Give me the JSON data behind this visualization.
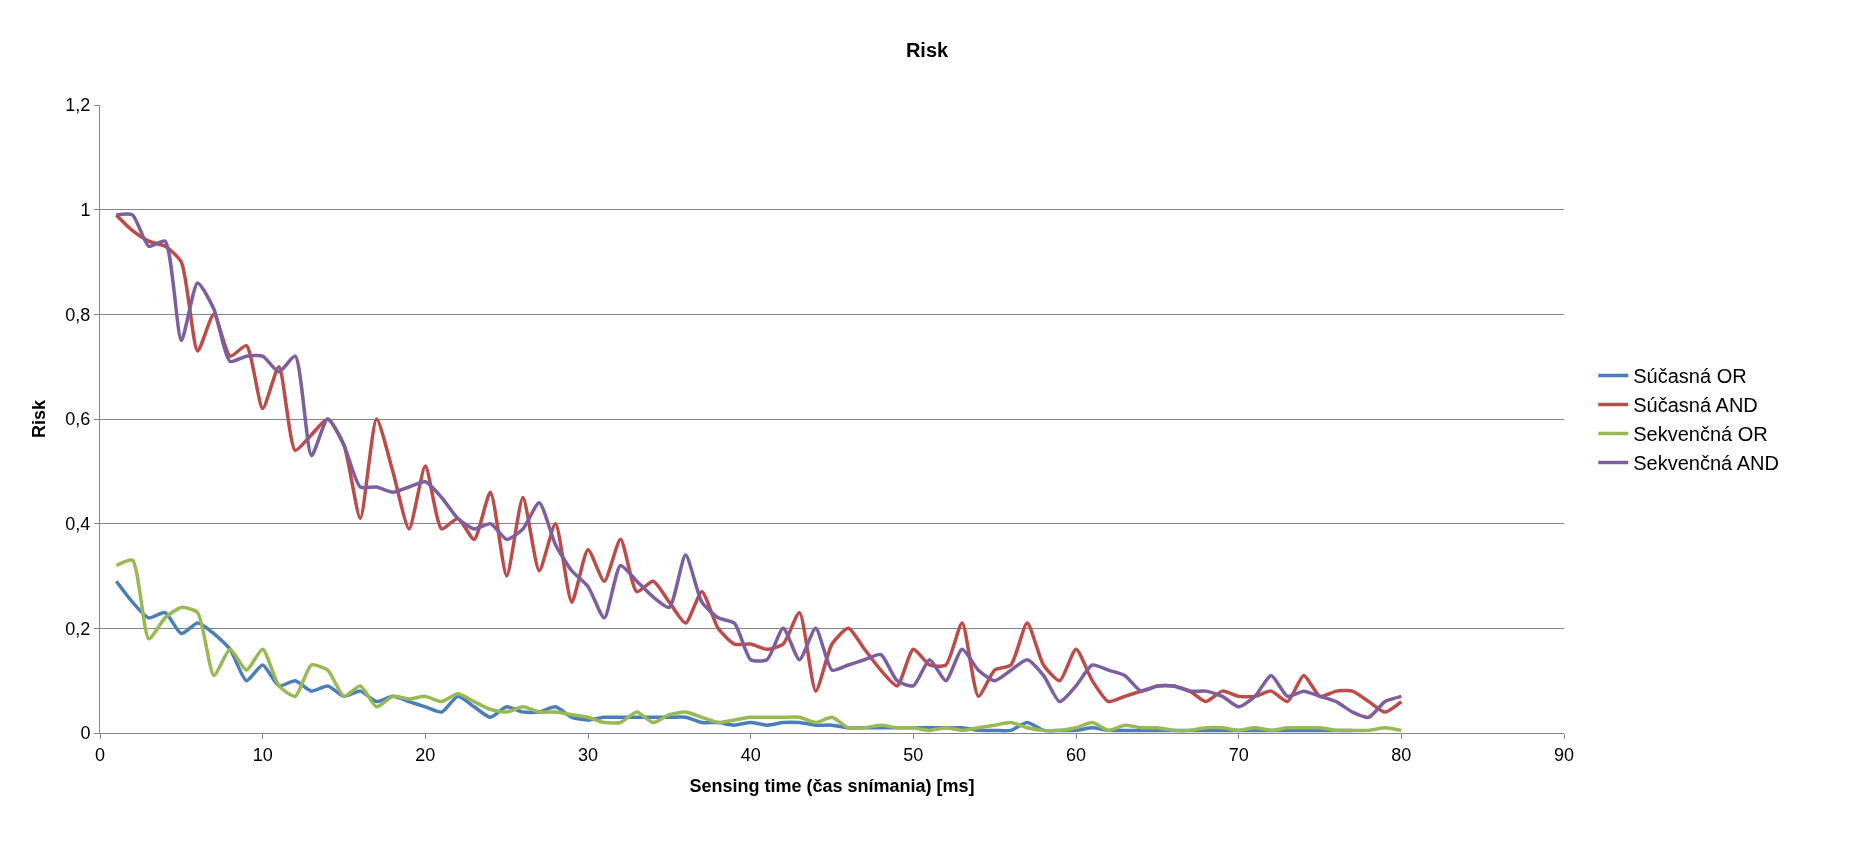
{
  "chart_data": {
    "type": "line",
    "title": "Risk",
    "xlabel": "Sensing time (čas snímania) [ms]",
    "ylabel": "Risk",
    "x": [
      1,
      2,
      3,
      4,
      5,
      6,
      7,
      8,
      9,
      10,
      11,
      12,
      13,
      14,
      15,
      16,
      17,
      18,
      19,
      20,
      21,
      22,
      23,
      24,
      25,
      26,
      27,
      28,
      29,
      30,
      31,
      32,
      33,
      34,
      35,
      36,
      37,
      38,
      39,
      40,
      41,
      42,
      43,
      44,
      45,
      46,
      47,
      48,
      49,
      50,
      51,
      52,
      53,
      54,
      55,
      56,
      57,
      58,
      59,
      60,
      61,
      62,
      63,
      64,
      65,
      66,
      67,
      68,
      69,
      70,
      71,
      72,
      73,
      74,
      75,
      76,
      77,
      78,
      79,
      80
    ],
    "series": [
      {
        "name": "Súčasná OR",
        "color": "#4a7ebb",
        "values": [
          0.29,
          0.25,
          0.22,
          0.23,
          0.19,
          0.21,
          0.19,
          0.16,
          0.1,
          0.13,
          0.09,
          0.1,
          0.08,
          0.09,
          0.07,
          0.08,
          0.06,
          0.07,
          0.06,
          0.05,
          0.04,
          0.07,
          0.05,
          0.03,
          0.05,
          0.04,
          0.04,
          0.05,
          0.03,
          0.025,
          0.03,
          0.03,
          0.03,
          0.03,
          0.03,
          0.03,
          0.02,
          0.02,
          0.015,
          0.02,
          0.015,
          0.02,
          0.02,
          0.015,
          0.015,
          0.01,
          0.01,
          0.01,
          0.01,
          0.01,
          0.01,
          0.01,
          0.01,
          0.005,
          0.005,
          0.005,
          0.02,
          0.005,
          0.005,
          0.005,
          0.01,
          0.005,
          0.005,
          0.005,
          0.005,
          0.005,
          0.005,
          0.005,
          0.005,
          0.005,
          0.005,
          0.005,
          0.005,
          0.005,
          0.005,
          0.005,
          0.005,
          null,
          null,
          null
        ]
      },
      {
        "name": "Súčasná AND",
        "color": "#be4b48",
        "values": [
          0.99,
          0.96,
          0.94,
          0.93,
          0.9,
          0.73,
          0.8,
          0.72,
          0.74,
          0.62,
          0.7,
          0.54,
          0.57,
          0.6,
          0.55,
          0.41,
          0.6,
          0.5,
          0.39,
          0.51,
          0.39,
          0.41,
          0.37,
          0.46,
          0.3,
          0.45,
          0.31,
          0.4,
          0.25,
          0.35,
          0.29,
          0.37,
          0.27,
          0.29,
          0.25,
          0.21,
          0.27,
          0.2,
          0.17,
          0.17,
          0.16,
          0.17,
          0.23,
          0.08,
          0.17,
          0.2,
          0.16,
          0.12,
          0.09,
          0.16,
          0.13,
          0.13,
          0.21,
          0.07,
          0.12,
          0.13,
          0.21,
          0.13,
          0.1,
          0.16,
          0.1,
          0.06,
          0.07,
          0.08,
          0.09,
          0.09,
          0.08,
          0.06,
          0.08,
          0.07,
          0.07,
          0.08,
          0.06,
          0.11,
          0.07,
          0.08,
          0.08,
          0.06,
          0.04,
          0.06
        ]
      },
      {
        "name": "Sekvenčná OR",
        "color": "#98b954",
        "values": [
          0.32,
          0.33,
          0.18,
          0.22,
          0.24,
          0.23,
          0.11,
          0.16,
          0.12,
          0.16,
          0.09,
          0.07,
          0.13,
          0.12,
          0.07,
          0.09,
          0.05,
          0.07,
          0.065,
          0.07,
          0.06,
          0.075,
          0.06,
          0.045,
          0.04,
          0.05,
          0.04,
          0.04,
          0.035,
          0.03,
          0.02,
          0.02,
          0.04,
          0.02,
          0.035,
          0.04,
          0.03,
          0.02,
          0.025,
          0.03,
          0.03,
          0.03,
          0.03,
          0.02,
          0.03,
          0.01,
          0.01,
          0.015,
          0.01,
          0.01,
          0.005,
          0.01,
          0.005,
          0.01,
          0.015,
          0.02,
          0.01,
          0.005,
          0.005,
          0.01,
          0.02,
          0.005,
          0.015,
          0.01,
          0.01,
          0.005,
          0.005,
          0.01,
          0.01,
          0.005,
          0.01,
          0.005,
          0.01,
          0.01,
          0.01,
          0.005,
          0.005,
          0.005,
          0.01,
          0.005
        ]
      },
      {
        "name": "Sekvenčná AND",
        "color": "#7d5fa0",
        "values": [
          0.99,
          0.99,
          0.93,
          0.94,
          0.75,
          0.86,
          0.81,
          0.71,
          0.72,
          0.72,
          0.69,
          0.72,
          0.53,
          0.6,
          0.55,
          0.47,
          0.47,
          0.46,
          0.47,
          0.48,
          0.45,
          0.41,
          0.39,
          0.4,
          0.37,
          0.39,
          0.44,
          0.36,
          0.31,
          0.28,
          0.22,
          0.32,
          0.29,
          0.26,
          0.24,
          0.34,
          0.25,
          0.22,
          0.21,
          0.14,
          0.14,
          0.2,
          0.14,
          0.2,
          0.12,
          0.13,
          0.14,
          0.15,
          0.1,
          0.09,
          0.14,
          0.1,
          0.16,
          0.12,
          0.1,
          0.12,
          0.14,
          0.11,
          0.06,
          0.09,
          0.13,
          0.12,
          0.11,
          0.08,
          0.09,
          0.09,
          0.08,
          0.08,
          0.07,
          0.05,
          0.07,
          0.11,
          0.07,
          0.08,
          0.07,
          0.06,
          0.04,
          0.03,
          0.06,
          0.07
        ]
      }
    ],
    "xlim": [
      0,
      90
    ],
    "xticks": [
      0,
      10,
      20,
      30,
      40,
      50,
      60,
      70,
      80,
      90
    ],
    "ylim": [
      0,
      1.2
    ],
    "yticks": [
      {
        "value": 0,
        "label": "0"
      },
      {
        "value": 0.2,
        "label": "0,2"
      },
      {
        "value": 0.4,
        "label": "0,4"
      },
      {
        "value": 0.6,
        "label": "0,6"
      },
      {
        "value": 0.8,
        "label": "0,8"
      },
      {
        "value": 1,
        "label": "1"
      },
      {
        "value": 1.2,
        "label": "1,2"
      }
    ],
    "grid": "y",
    "legend": "right",
    "marker": "none",
    "line_style": "solid"
  }
}
